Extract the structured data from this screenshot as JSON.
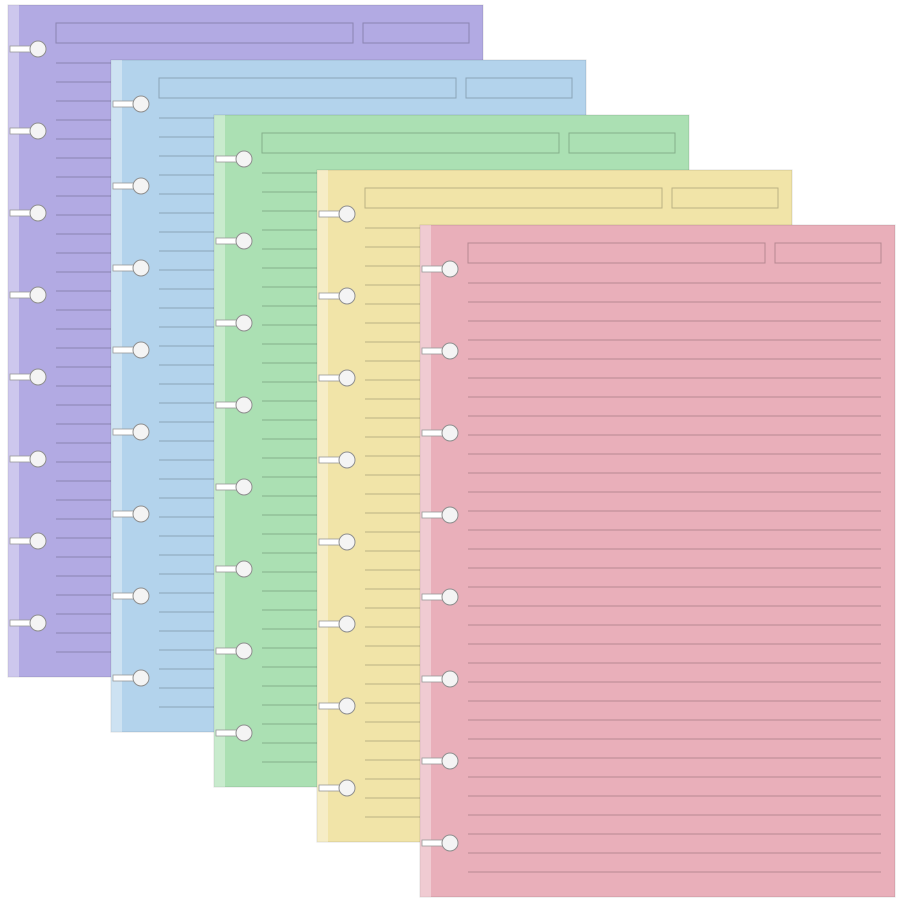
{
  "sheets": [
    {
      "color": "#b2aae3"
    },
    {
      "color": "#b3d3ec"
    },
    {
      "color": "#abe0b3"
    },
    {
      "color": "#f1e4a8"
    },
    {
      "color": "#e9afba"
    }
  ]
}
